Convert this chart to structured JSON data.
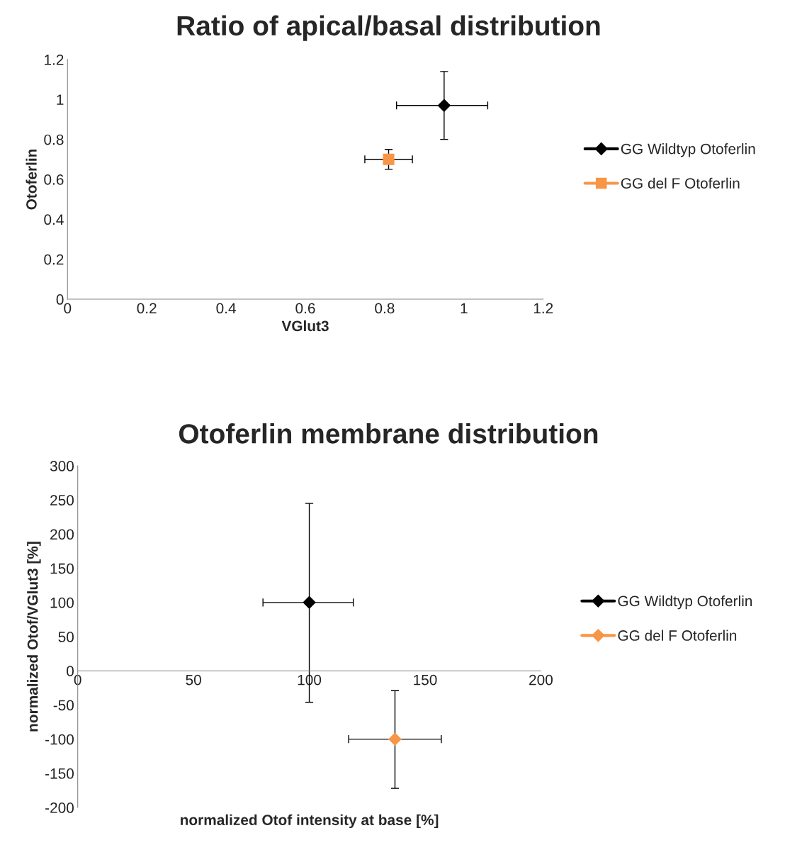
{
  "chart_data": [
    {
      "type": "scatter",
      "title": "Ratio of apical/basal distribution",
      "xlabel": "VGlut3",
      "ylabel": "Otoferlin",
      "xlim": [
        0,
        1.2
      ],
      "xticks": [
        0,
        0.2,
        0.4,
        0.6,
        0.8,
        1,
        1.2
      ],
      "ylim": [
        0,
        1.2
      ],
      "yticks": [
        0,
        0.2,
        0.4,
        0.6,
        0.8,
        1,
        1.2
      ],
      "grid": false,
      "legend": "right",
      "series": [
        {
          "name": "GG Wildtyp Otoferlin",
          "color": "#000000",
          "marker": "diamond",
          "x": [
            0.95
          ],
          "values": [
            0.97
          ],
          "errors": [
            [
              0.8,
              1.14
            ]
          ],
          "xerrors": [
            [
              0.83,
              1.06
            ]
          ]
        },
        {
          "name": "GG del F Otoferlin",
          "color": "#f79646",
          "marker": "square",
          "x": [
            0.81
          ],
          "values": [
            0.7
          ],
          "errors": [
            [
              0.65,
              0.75
            ]
          ],
          "xerrors": [
            [
              0.75,
              0.87
            ]
          ]
        }
      ]
    },
    {
      "type": "scatter",
      "title": "Otoferlin membrane distribution",
      "xlabel": "normalized Otof intensity at base [%]",
      "ylabel": "normalized Otof/VGlut3 [%]",
      "xlim": [
        0,
        200
      ],
      "xticks": [
        0,
        50,
        100,
        150,
        200
      ],
      "ylim": [
        -200,
        300
      ],
      "yticks": [
        -200,
        -150,
        -100,
        -50,
        0,
        50,
        100,
        150,
        200,
        250,
        300
      ],
      "grid": false,
      "legend": "right",
      "series": [
        {
          "name": "GG Wildtyp Otoferlin",
          "color": "#000000",
          "marker": "diamond",
          "x": [
            100
          ],
          "values": [
            100
          ],
          "errors": [
            [
              -46,
              245
            ]
          ],
          "xerrors": [
            [
              80,
              119
            ]
          ]
        },
        {
          "name": "GG del F Otoferlin",
          "color": "#f79646",
          "marker": "diamond",
          "x": [
            137
          ],
          "values": [
            -100
          ],
          "errors": [
            [
              -172,
              -29
            ]
          ],
          "xerrors": [
            [
              117,
              157
            ]
          ]
        }
      ]
    }
  ]
}
